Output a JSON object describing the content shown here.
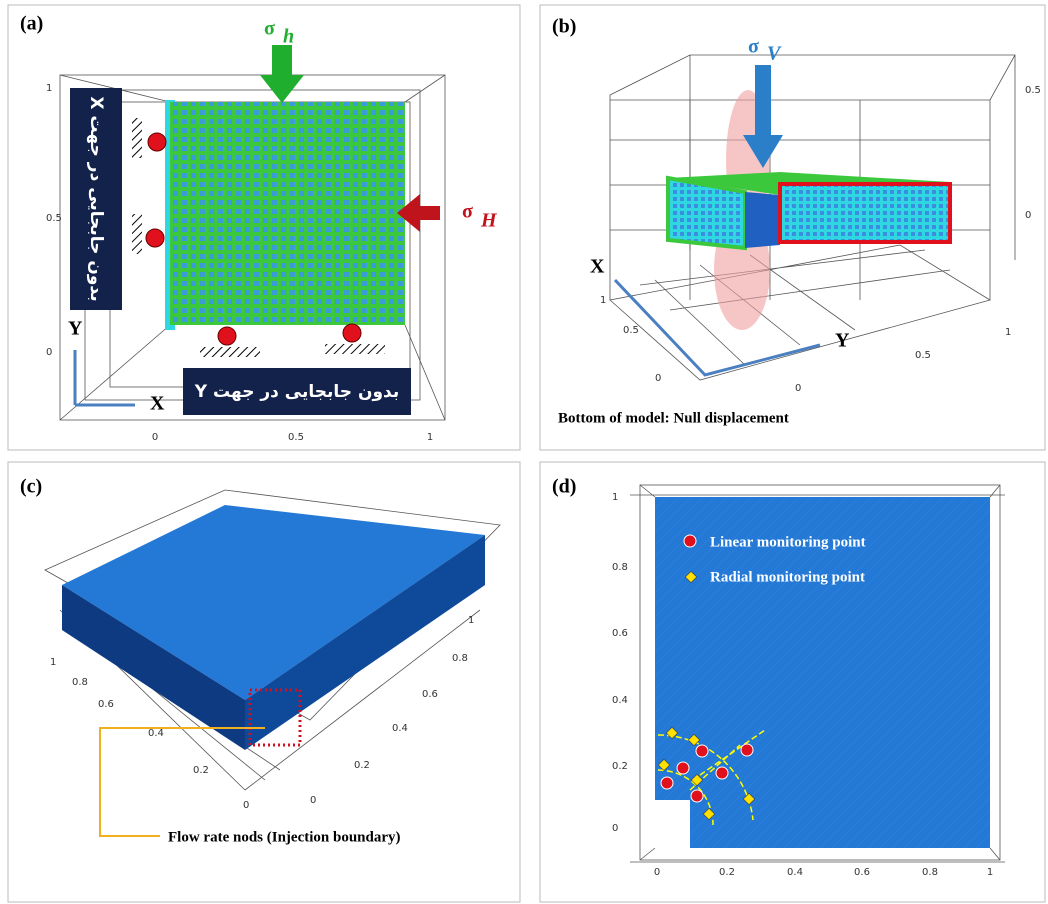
{
  "panel_a": {
    "label": "(a)",
    "stress_top": "σ",
    "stress_top_sub": "h",
    "stress_right": "σ",
    "stress_right_sub": "H",
    "note_x": "بدون جابجایی در جهت X",
    "note_y": "بدون جابجایی در جهت Y",
    "axis_y": "Y",
    "axis_x": "X",
    "yticks": [
      1,
      0.5,
      0
    ],
    "xticks": [
      0,
      0.5,
      1
    ]
  },
  "panel_b": {
    "label": "(b)",
    "stress": "σ",
    "stress_sub": "V",
    "axis_x": "X",
    "axis_y": "Y",
    "caption": "Bottom of model: Null displacement",
    "zticks": [
      0.5,
      0
    ],
    "xticks": [
      1,
      0.5,
      0
    ],
    "yticks": [
      0,
      0.5,
      1
    ]
  },
  "panel_c": {
    "label": "(c)",
    "caption": "Flow rate nods (Injection boundary)",
    "left_ticks": [
      1,
      0.8,
      0.6,
      0.4,
      0.2,
      0
    ],
    "right_ticks": [
      1,
      0.8,
      0.6,
      0.4,
      0.2,
      0
    ]
  },
  "panel_d": {
    "label": "(d)",
    "legend": [
      "Linear monitoring point",
      "Radial monitoring point"
    ],
    "yticks": [
      1,
      0.8,
      0.6,
      0.4,
      0.2,
      0
    ],
    "xticks": [
      0,
      0.2,
      0.4,
      0.6,
      0.8,
      1
    ]
  }
}
